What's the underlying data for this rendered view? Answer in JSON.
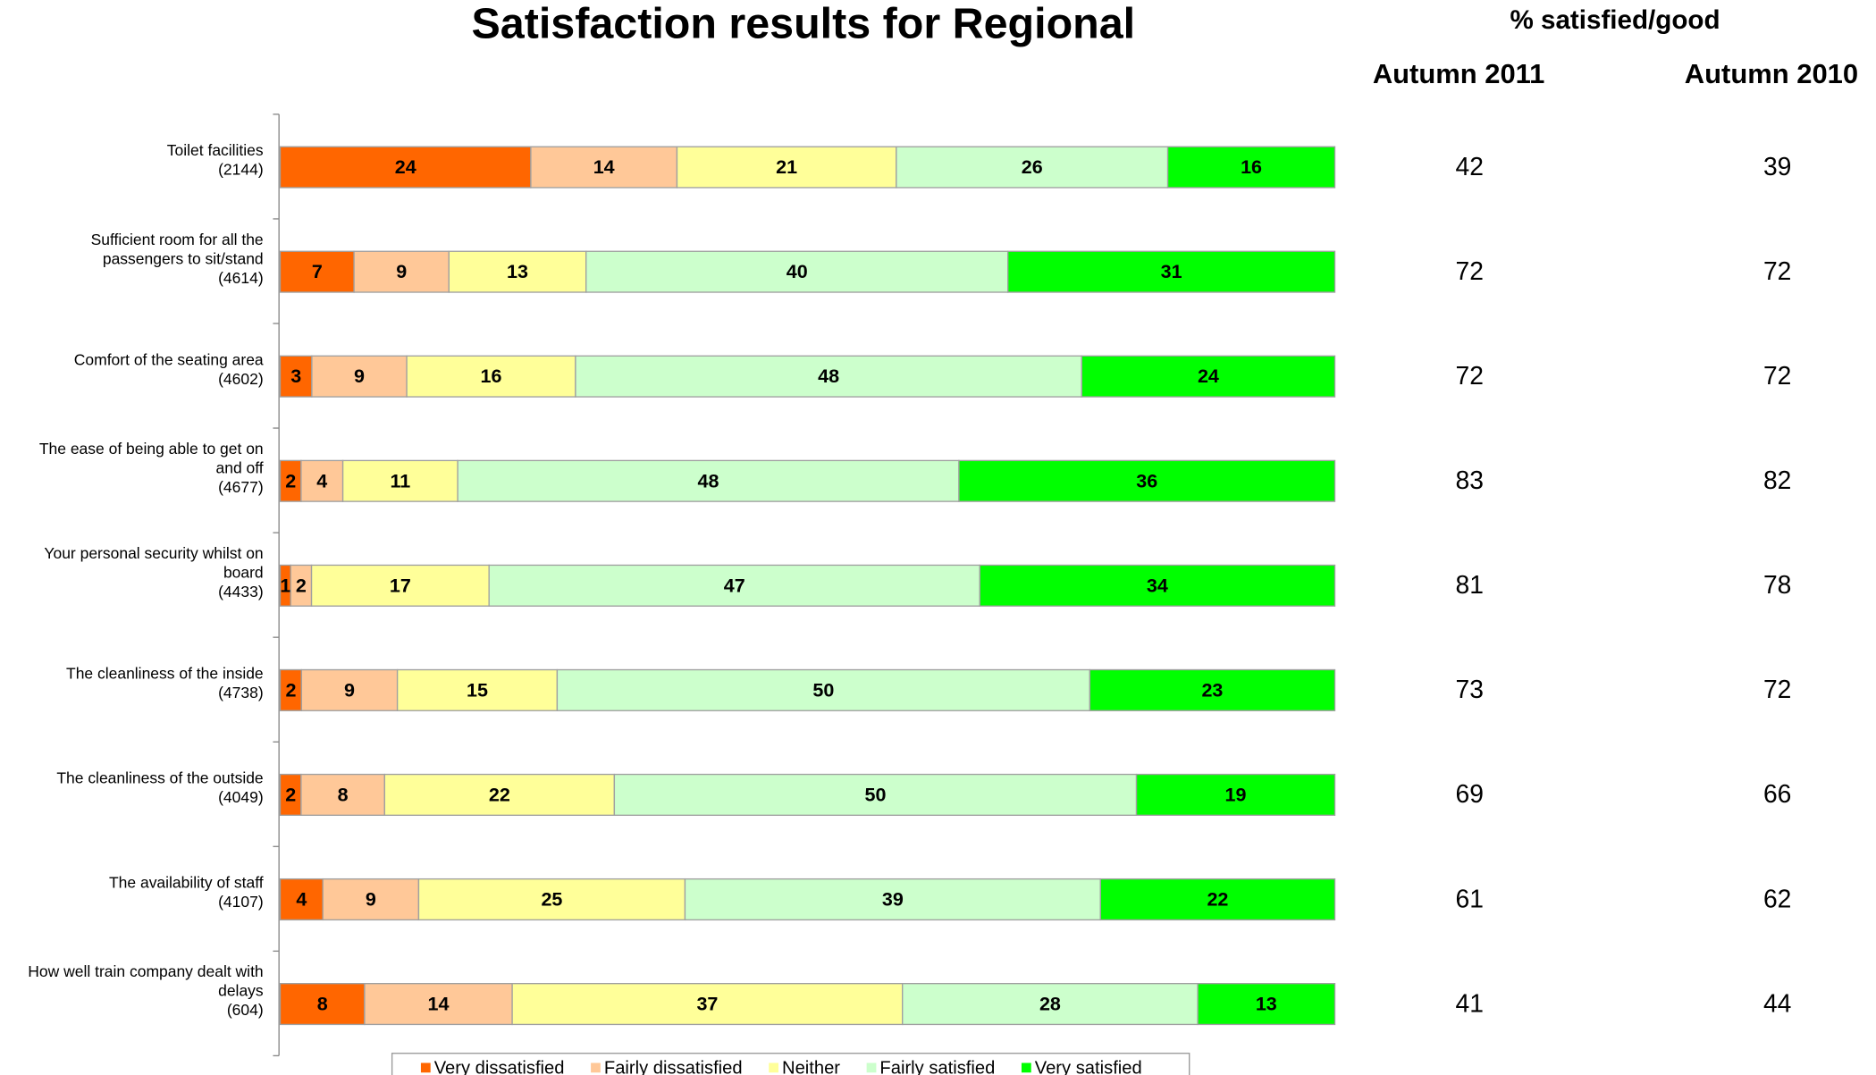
{
  "chart_data": {
    "type": "percent_stacked_barh",
    "title": "Satisfaction results for Regional",
    "categories": [
      [
        "Toilet facilities",
        "(2144)"
      ],
      [
        "Sufficient room for all the",
        "passengers to sit/stand",
        "(4614)"
      ],
      [
        "Comfort of the seating area",
        "(4602)"
      ],
      [
        "The ease of being able to get on",
        "and off",
        "(4677)"
      ],
      [
        "Your personal security whilst on",
        "board",
        "(4433)"
      ],
      [
        "The cleanliness of the inside",
        "(4738)"
      ],
      [
        "The cleanliness of the outside",
        "(4049)"
      ],
      [
        "The availability of  staff",
        "(4107)"
      ],
      [
        "How well train company dealt with",
        "delays",
        "(604)"
      ]
    ],
    "series": [
      {
        "name": "Very dissatisfied",
        "color": "#ff6600",
        "values": [
          24,
          7,
          3,
          2,
          1,
          2,
          2,
          4,
          8
        ]
      },
      {
        "name": "Fairly dissatisfied",
        "color": "#ffc898",
        "values": [
          14,
          9,
          9,
          4,
          2,
          9,
          8,
          9,
          14
        ]
      },
      {
        "name": "Neither",
        "color": "#ffff99",
        "values": [
          21,
          13,
          16,
          11,
          17,
          15,
          22,
          25,
          37
        ]
      },
      {
        "name": "Fairly satisfied",
        "color": "#ccffcc",
        "values": [
          26,
          40,
          48,
          48,
          47,
          50,
          50,
          39,
          28
        ]
      },
      {
        "name": "Very satisfied",
        "color": "#00ff00",
        "values": [
          16,
          31,
          24,
          36,
          34,
          23,
          19,
          22,
          13
        ]
      }
    ],
    "legend": "bottom",
    "table": {
      "title": "% satisfied/good",
      "columns": [
        "Autumn 2011",
        "Autumn 2010"
      ],
      "rows": [
        [
          42,
          39
        ],
        [
          72,
          72
        ],
        [
          72,
          72
        ],
        [
          83,
          82
        ],
        [
          81,
          78
        ],
        [
          73,
          72
        ],
        [
          69,
          66
        ],
        [
          61,
          62
        ],
        [
          41,
          44
        ]
      ]
    }
  }
}
